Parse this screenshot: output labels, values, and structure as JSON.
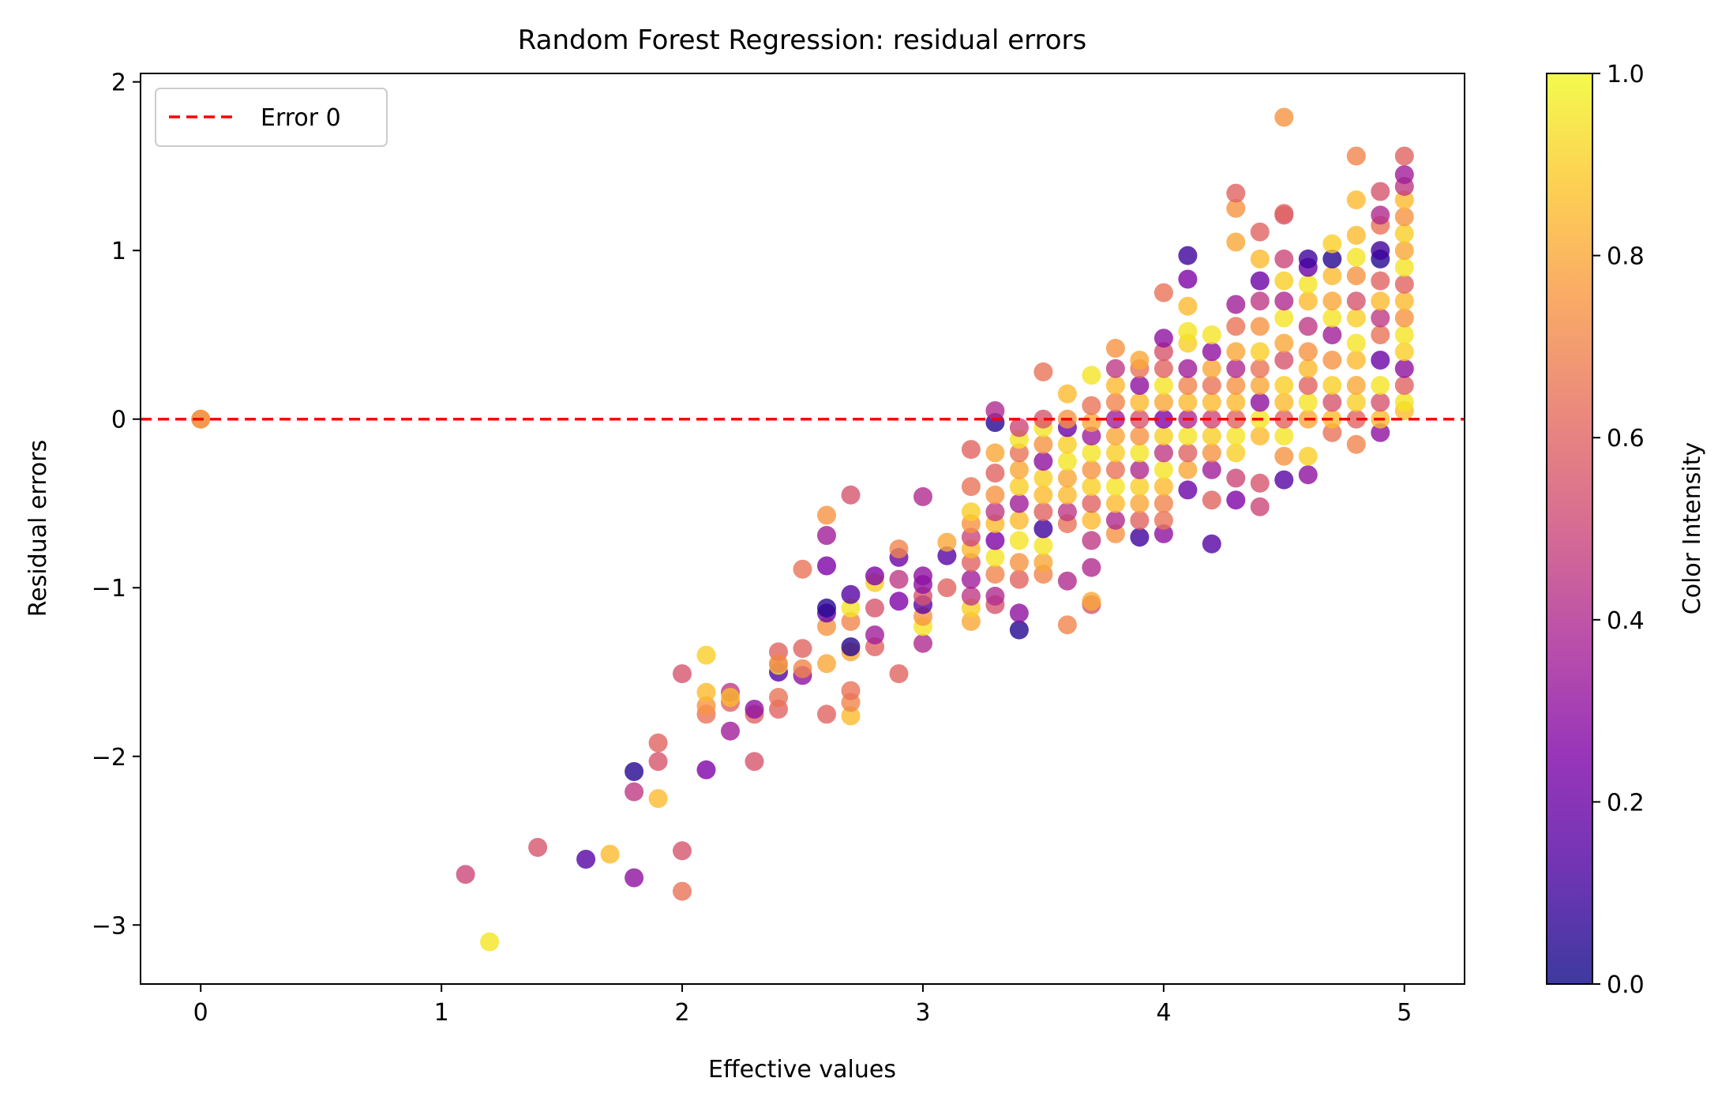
{
  "chart_data": {
    "type": "scatter",
    "title": "Random Forest Regression: residual errors",
    "xlabel": "Effective values",
    "ylabel": "Residual errors",
    "xlim": [
      -0.25,
      5.25
    ],
    "ylim": [
      -3.35,
      2.05
    ],
    "xticks": [
      0,
      1,
      2,
      3,
      4,
      5
    ],
    "yticks": [
      -3,
      -2,
      -1,
      0,
      1,
      2
    ],
    "grid": false,
    "legend": {
      "position": "top-left",
      "entries": [
        {
          "label": "Error 0",
          "style": "dashed-line",
          "color": "#ff0000"
        }
      ]
    },
    "reference_line": {
      "y": 0,
      "label": "Error 0",
      "color": "#ff0000",
      "style": "dashed"
    },
    "colormap": "plasma",
    "colorbar": {
      "label": "Color Intensity",
      "range": [
        0,
        1
      ],
      "ticks": [
        0.0,
        0.2,
        0.4,
        0.6,
        0.8,
        1.0
      ],
      "tick_labels": [
        "0.0",
        "0.2",
        "0.4",
        "0.6",
        "0.8",
        "1.0"
      ]
    },
    "colors": {
      "reference": "#ff0000",
      "axes": "#000000",
      "background": "#ffffff"
    },
    "points": [
      [
        0,
        0,
        0.95
      ],
      [
        0,
        0,
        0.7
      ],
      [
        1.1,
        -2.7,
        0.5
      ],
      [
        1.2,
        -3.1,
        0.95
      ],
      [
        1.4,
        -2.54,
        0.55
      ],
      [
        1.6,
        -2.61,
        0.15
      ],
      [
        1.7,
        -2.58,
        0.85
      ],
      [
        1.8,
        -2.72,
        0.3
      ],
      [
        1.8,
        -2.21,
        0.45
      ],
      [
        1.8,
        -2.09,
        0.05
      ],
      [
        1.9,
        -2.25,
        0.85
      ],
      [
        1.9,
        -2.03,
        0.55
      ],
      [
        1.9,
        -1.92,
        0.6
      ],
      [
        2.0,
        -2.8,
        0.65
      ],
      [
        2.0,
        -2.56,
        0.55
      ],
      [
        2.0,
        -1.51,
        0.55
      ],
      [
        2.1,
        -2.08,
        0.25
      ],
      [
        2.1,
        -1.75,
        0.65
      ],
      [
        2.1,
        -1.7,
        0.75
      ],
      [
        2.1,
        -1.62,
        0.85
      ],
      [
        2.1,
        -1.4,
        0.9
      ],
      [
        2.2,
        -1.85,
        0.35
      ],
      [
        2.2,
        -1.68,
        0.6
      ],
      [
        2.2,
        -1.62,
        0.45
      ],
      [
        2.2,
        -1.65,
        0.85
      ],
      [
        2.3,
        -2.03,
        0.55
      ],
      [
        2.3,
        -1.75,
        0.6
      ],
      [
        2.3,
        -1.72,
        0.3
      ],
      [
        2.4,
        -1.72,
        0.6
      ],
      [
        2.4,
        -1.65,
        0.65
      ],
      [
        2.4,
        -1.5,
        0.15
      ],
      [
        2.4,
        -1.46,
        0.95
      ],
      [
        2.4,
        -1.38,
        0.6
      ],
      [
        2.4,
        -1.45,
        0.7
      ],
      [
        2.5,
        -1.52,
        0.3
      ],
      [
        2.5,
        -1.48,
        0.7
      ],
      [
        2.5,
        -1.36,
        0.6
      ],
      [
        2.5,
        -0.89,
        0.65
      ],
      [
        2.6,
        -1.75,
        0.6
      ],
      [
        2.6,
        -1.45,
        0.8
      ],
      [
        2.6,
        -1.23,
        0.75
      ],
      [
        2.6,
        -1.15,
        0.2
      ],
      [
        2.6,
        -1.12,
        0.05
      ],
      [
        2.6,
        -0.87,
        0.25
      ],
      [
        2.6,
        -0.69,
        0.35
      ],
      [
        2.6,
        -0.57,
        0.75
      ],
      [
        2.7,
        -1.76,
        0.85
      ],
      [
        2.7,
        -1.68,
        0.7
      ],
      [
        2.7,
        -1.61,
        0.65
      ],
      [
        2.7,
        -1.38,
        0.8
      ],
      [
        2.7,
        -1.35,
        0.05
      ],
      [
        2.7,
        -1.2,
        0.7
      ],
      [
        2.7,
        -1.12,
        0.95
      ],
      [
        2.7,
        -1.04,
        0.15
      ],
      [
        2.7,
        -0.45,
        0.55
      ],
      [
        2.8,
        -1.35,
        0.6
      ],
      [
        2.8,
        -1.28,
        0.35
      ],
      [
        2.8,
        -1.12,
        0.55
      ],
      [
        2.8,
        -0.97,
        0.9
      ],
      [
        2.8,
        -0.93,
        0.25
      ],
      [
        2.9,
        -1.51,
        0.6
      ],
      [
        2.9,
        -1.08,
        0.25
      ],
      [
        2.9,
        -0.95,
        0.45
      ],
      [
        2.9,
        -0.82,
        0.2
      ],
      [
        2.9,
        -0.77,
        0.7
      ],
      [
        3.0,
        -1.33,
        0.4
      ],
      [
        3.0,
        -1.23,
        0.95
      ],
      [
        3.0,
        -1.17,
        0.75
      ],
      [
        3.0,
        -1.1,
        0.15
      ],
      [
        3.0,
        -1.05,
        0.55
      ],
      [
        3.0,
        -0.98,
        0.3
      ],
      [
        3.0,
        -0.93,
        0.3
      ],
      [
        3.0,
        -0.46,
        0.4
      ],
      [
        3.1,
        -1.0,
        0.6
      ],
      [
        3.1,
        -0.81,
        0.15
      ],
      [
        3.1,
        -0.73,
        0.8
      ],
      [
        3.2,
        -1.2,
        0.8
      ],
      [
        3.2,
        -1.12,
        0.9
      ],
      [
        3.2,
        -1.05,
        0.45
      ],
      [
        3.2,
        -0.95,
        0.35
      ],
      [
        3.2,
        -0.85,
        0.6
      ],
      [
        3.2,
        -0.77,
        0.85
      ],
      [
        3.2,
        -0.7,
        0.5
      ],
      [
        3.2,
        -0.62,
        0.75
      ],
      [
        3.2,
        -0.55,
        0.9
      ],
      [
        3.2,
        -0.4,
        0.65
      ],
      [
        3.2,
        -0.18,
        0.6
      ],
      [
        3.3,
        -1.1,
        0.55
      ],
      [
        3.3,
        -1.05,
        0.4
      ],
      [
        3.3,
        -0.92,
        0.7
      ],
      [
        3.3,
        -0.82,
        0.95
      ],
      [
        3.3,
        -0.72,
        0.25
      ],
      [
        3.3,
        -0.62,
        0.85
      ],
      [
        3.3,
        -0.55,
        0.45
      ],
      [
        3.3,
        -0.45,
        0.75
      ],
      [
        3.3,
        -0.32,
        0.6
      ],
      [
        3.3,
        -0.2,
        0.8
      ],
      [
        3.3,
        -0.02,
        0.05
      ],
      [
        3.3,
        0.05,
        0.4
      ],
      [
        3.4,
        -1.25,
        0.05
      ],
      [
        3.4,
        -1.15,
        0.3
      ],
      [
        3.4,
        -0.95,
        0.6
      ],
      [
        3.4,
        -0.85,
        0.75
      ],
      [
        3.4,
        -0.72,
        0.95
      ],
      [
        3.4,
        -0.6,
        0.85
      ],
      [
        3.4,
        -0.5,
        0.35
      ],
      [
        3.4,
        -0.4,
        0.9
      ],
      [
        3.4,
        -0.3,
        0.8
      ],
      [
        3.4,
        -0.2,
        0.65
      ],
      [
        3.4,
        -0.12,
        0.95
      ],
      [
        3.4,
        -0.05,
        0.5
      ],
      [
        3.5,
        -0.92,
        0.7
      ],
      [
        3.5,
        -0.85,
        0.8
      ],
      [
        3.5,
        -0.75,
        0.95
      ],
      [
        3.5,
        -0.65,
        0.1
      ],
      [
        3.5,
        -0.55,
        0.6
      ],
      [
        3.5,
        -0.45,
        0.85
      ],
      [
        3.5,
        -0.35,
        0.9
      ],
      [
        3.5,
        -0.25,
        0.3
      ],
      [
        3.5,
        -0.15,
        0.75
      ],
      [
        3.5,
        -0.05,
        0.95
      ],
      [
        3.5,
        0.0,
        0.55
      ],
      [
        3.5,
        0.28,
        0.65
      ],
      [
        3.6,
        -1.22,
        0.7
      ],
      [
        3.6,
        -0.96,
        0.4
      ],
      [
        3.6,
        -0.62,
        0.65
      ],
      [
        3.6,
        -0.55,
        0.45
      ],
      [
        3.6,
        -0.45,
        0.85
      ],
      [
        3.6,
        -0.35,
        0.8
      ],
      [
        3.6,
        -0.25,
        0.95
      ],
      [
        3.6,
        -0.15,
        0.9
      ],
      [
        3.6,
        -0.05,
        0.2
      ],
      [
        3.6,
        0.0,
        0.75
      ],
      [
        3.6,
        0.15,
        0.85
      ],
      [
        3.7,
        -1.1,
        0.55
      ],
      [
        3.7,
        -1.08,
        0.8
      ],
      [
        3.7,
        -0.88,
        0.4
      ],
      [
        3.7,
        -0.72,
        0.45
      ],
      [
        3.7,
        -0.6,
        0.85
      ],
      [
        3.7,
        -0.5,
        0.6
      ],
      [
        3.7,
        -0.4,
        0.9
      ],
      [
        3.7,
        -0.3,
        0.75
      ],
      [
        3.7,
        -0.2,
        0.95
      ],
      [
        3.7,
        -0.1,
        0.35
      ],
      [
        3.7,
        -0.02,
        0.8
      ],
      [
        3.7,
        0.08,
        0.65
      ],
      [
        3.7,
        0.26,
        0.95
      ],
      [
        3.8,
        -0.68,
        0.75
      ],
      [
        3.8,
        -0.6,
        0.4
      ],
      [
        3.8,
        -0.5,
        0.85
      ],
      [
        3.8,
        -0.4,
        0.95
      ],
      [
        3.8,
        -0.3,
        0.65
      ],
      [
        3.8,
        -0.2,
        0.9
      ],
      [
        3.8,
        -0.1,
        0.8
      ],
      [
        3.8,
        0.0,
        0.35
      ],
      [
        3.8,
        0.1,
        0.7
      ],
      [
        3.8,
        0.2,
        0.85
      ],
      [
        3.8,
        0.3,
        0.45
      ],
      [
        3.8,
        0.42,
        0.75
      ],
      [
        3.9,
        -0.7,
        0.1
      ],
      [
        3.9,
        -0.6,
        0.6
      ],
      [
        3.9,
        -0.5,
        0.8
      ],
      [
        3.9,
        -0.4,
        0.9
      ],
      [
        3.9,
        -0.3,
        0.4
      ],
      [
        3.9,
        -0.2,
        0.95
      ],
      [
        3.9,
        -0.1,
        0.75
      ],
      [
        3.9,
        0.0,
        0.55
      ],
      [
        3.9,
        0.1,
        0.85
      ],
      [
        3.9,
        0.2,
        0.3
      ],
      [
        3.9,
        0.3,
        0.65
      ],
      [
        3.9,
        0.35,
        0.8
      ],
      [
        4.0,
        -0.68,
        0.3
      ],
      [
        4.0,
        -0.6,
        0.65
      ],
      [
        4.0,
        -0.5,
        0.7
      ],
      [
        4.0,
        -0.4,
        0.85
      ],
      [
        4.0,
        -0.3,
        0.95
      ],
      [
        4.0,
        -0.2,
        0.45
      ],
      [
        4.0,
        -0.1,
        0.9
      ],
      [
        4.0,
        0.0,
        0.25
      ],
      [
        4.0,
        0.1,
        0.8
      ],
      [
        4.0,
        0.2,
        0.95
      ],
      [
        4.0,
        0.3,
        0.6
      ],
      [
        4.0,
        0.4,
        0.55
      ],
      [
        4.0,
        0.48,
        0.3
      ],
      [
        4.0,
        0.75,
        0.65
      ],
      [
        4.1,
        -0.42,
        0.2
      ],
      [
        4.1,
        -0.3,
        0.8
      ],
      [
        4.1,
        -0.2,
        0.6
      ],
      [
        4.1,
        -0.1,
        0.95
      ],
      [
        4.1,
        0.0,
        0.4
      ],
      [
        4.1,
        0.1,
        0.85
      ],
      [
        4.1,
        0.2,
        0.7
      ],
      [
        4.1,
        0.3,
        0.35
      ],
      [
        4.1,
        0.45,
        0.9
      ],
      [
        4.1,
        0.52,
        0.95
      ],
      [
        4.1,
        0.67,
        0.85
      ],
      [
        4.1,
        0.83,
        0.25
      ],
      [
        4.1,
        0.97,
        0.1
      ],
      [
        4.2,
        -0.74,
        0.15
      ],
      [
        4.2,
        -0.48,
        0.6
      ],
      [
        4.2,
        -0.3,
        0.35
      ],
      [
        4.2,
        -0.2,
        0.75
      ],
      [
        4.2,
        -0.1,
        0.9
      ],
      [
        4.2,
        0.0,
        0.5
      ],
      [
        4.2,
        0.1,
        0.85
      ],
      [
        4.2,
        0.2,
        0.65
      ],
      [
        4.2,
        0.3,
        0.8
      ],
      [
        4.2,
        0.4,
        0.3
      ],
      [
        4.2,
        0.5,
        0.95
      ],
      [
        4.3,
        -0.48,
        0.25
      ],
      [
        4.3,
        -0.35,
        0.5
      ],
      [
        4.3,
        -0.2,
        0.9
      ],
      [
        4.3,
        -0.1,
        0.95
      ],
      [
        4.3,
        0.0,
        0.6
      ],
      [
        4.3,
        0.1,
        0.85
      ],
      [
        4.3,
        0.2,
        0.75
      ],
      [
        4.3,
        0.3,
        0.4
      ],
      [
        4.3,
        0.4,
        0.8
      ],
      [
        4.3,
        0.55,
        0.65
      ],
      [
        4.3,
        0.68,
        0.35
      ],
      [
        4.3,
        1.05,
        0.8
      ],
      [
        4.3,
        1.25,
        0.75
      ],
      [
        4.3,
        1.34,
        0.6
      ],
      [
        4.4,
        -0.52,
        0.5
      ],
      [
        4.4,
        -0.38,
        0.55
      ],
      [
        4.4,
        -0.1,
        0.85
      ],
      [
        4.4,
        0.0,
        0.95
      ],
      [
        4.4,
        0.1,
        0.3
      ],
      [
        4.4,
        0.2,
        0.8
      ],
      [
        4.4,
        0.3,
        0.65
      ],
      [
        4.4,
        0.4,
        0.9
      ],
      [
        4.4,
        0.55,
        0.75
      ],
      [
        4.4,
        0.7,
        0.45
      ],
      [
        4.4,
        0.82,
        0.2
      ],
      [
        4.4,
        0.95,
        0.85
      ],
      [
        4.4,
        1.11,
        0.6
      ],
      [
        4.5,
        -0.36,
        0.15
      ],
      [
        4.5,
        -0.22,
        0.75
      ],
      [
        4.5,
        -0.1,
        0.95
      ],
      [
        4.5,
        0.0,
        0.6
      ],
      [
        4.5,
        0.1,
        0.85
      ],
      [
        4.5,
        0.2,
        0.9
      ],
      [
        4.5,
        0.35,
        0.55
      ],
      [
        4.5,
        0.45,
        0.8
      ],
      [
        4.5,
        0.6,
        0.95
      ],
      [
        4.5,
        0.7,
        0.4
      ],
      [
        4.5,
        0.82,
        0.9
      ],
      [
        4.5,
        0.95,
        0.5
      ],
      [
        4.5,
        1.21,
        0.55
      ],
      [
        4.5,
        1.22,
        0.6
      ],
      [
        4.5,
        1.79,
        0.75
      ],
      [
        4.6,
        -0.33,
        0.3
      ],
      [
        4.6,
        -0.22,
        0.9
      ],
      [
        4.6,
        0.0,
        0.8
      ],
      [
        4.6,
        0.1,
        0.95
      ],
      [
        4.6,
        0.2,
        0.6
      ],
      [
        4.6,
        0.3,
        0.85
      ],
      [
        4.6,
        0.4,
        0.75
      ],
      [
        4.6,
        0.55,
        0.45
      ],
      [
        4.6,
        0.7,
        0.85
      ],
      [
        4.6,
        0.8,
        0.95
      ],
      [
        4.6,
        0.9,
        0.2
      ],
      [
        4.6,
        0.95,
        0.1
      ],
      [
        4.7,
        -0.08,
        0.65
      ],
      [
        4.7,
        0.0,
        0.85
      ],
      [
        4.7,
        0.1,
        0.55
      ],
      [
        4.7,
        0.2,
        0.9
      ],
      [
        4.7,
        0.35,
        0.75
      ],
      [
        4.7,
        0.5,
        0.35
      ],
      [
        4.7,
        0.6,
        0.95
      ],
      [
        4.7,
        0.7,
        0.8
      ],
      [
        4.7,
        0.85,
        0.85
      ],
      [
        4.7,
        0.95,
        0.05
      ],
      [
        4.7,
        1.04,
        0.9
      ],
      [
        4.8,
        -0.15,
        0.7
      ],
      [
        4.8,
        0.0,
        0.6
      ],
      [
        4.8,
        0.1,
        0.9
      ],
      [
        4.8,
        0.2,
        0.8
      ],
      [
        4.8,
        0.35,
        0.85
      ],
      [
        4.8,
        0.45,
        0.95
      ],
      [
        4.8,
        0.6,
        0.9
      ],
      [
        4.8,
        0.7,
        0.55
      ],
      [
        4.8,
        0.85,
        0.75
      ],
      [
        4.8,
        0.96,
        0.95
      ],
      [
        4.8,
        1.09,
        0.85
      ],
      [
        4.8,
        1.3,
        0.85
      ],
      [
        4.8,
        1.56,
        0.7
      ],
      [
        4.9,
        -0.08,
        0.3
      ],
      [
        4.9,
        0.0,
        0.85
      ],
      [
        4.9,
        0.1,
        0.55
      ],
      [
        4.9,
        0.2,
        0.95
      ],
      [
        4.9,
        0.35,
        0.2
      ],
      [
        4.9,
        0.5,
        0.65
      ],
      [
        4.9,
        0.6,
        0.45
      ],
      [
        4.9,
        0.7,
        0.85
      ],
      [
        4.9,
        0.82,
        0.6
      ],
      [
        4.9,
        0.95,
        0.05
      ],
      [
        4.9,
        1.0,
        0.1
      ],
      [
        4.9,
        1.15,
        0.65
      ],
      [
        4.9,
        1.21,
        0.4
      ],
      [
        4.9,
        1.35,
        0.55
      ],
      [
        5.0,
        0.05,
        0.85
      ],
      [
        5.0,
        0.1,
        0.95
      ],
      [
        5.0,
        0.2,
        0.6
      ],
      [
        5.0,
        0.3,
        0.3
      ],
      [
        5.0,
        0.4,
        0.9
      ],
      [
        5.0,
        0.5,
        0.95
      ],
      [
        5.0,
        0.6,
        0.75
      ],
      [
        5.0,
        0.7,
        0.85
      ],
      [
        5.0,
        0.8,
        0.6
      ],
      [
        5.0,
        0.9,
        0.95
      ],
      [
        5.0,
        1.0,
        0.8
      ],
      [
        5.0,
        1.1,
        0.9
      ],
      [
        5.0,
        1.2,
        0.75
      ],
      [
        5.0,
        1.3,
        0.85
      ],
      [
        5.0,
        1.38,
        0.45
      ],
      [
        5.0,
        1.45,
        0.35
      ],
      [
        5.0,
        1.56,
        0.6
      ]
    ]
  }
}
